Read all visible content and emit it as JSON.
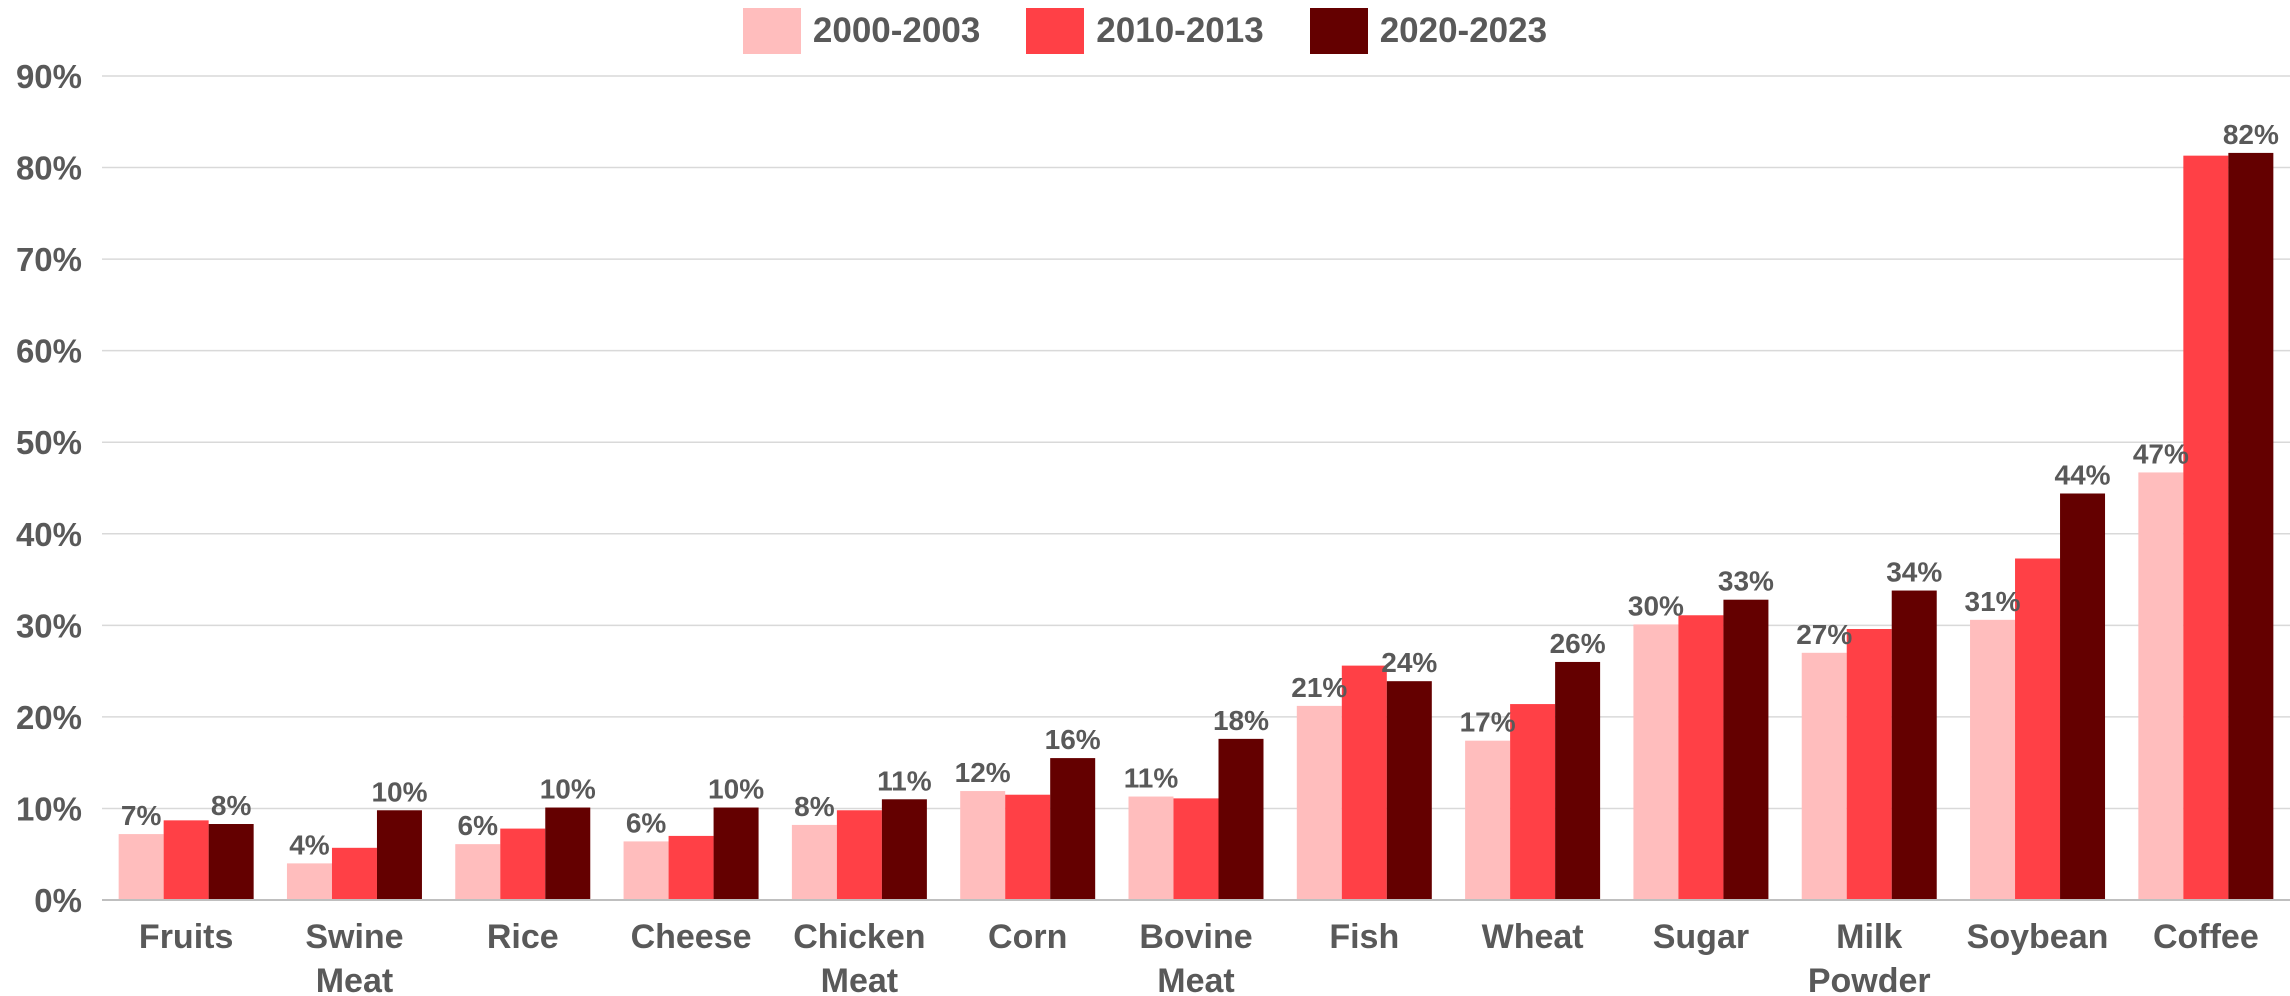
{
  "chart_data": {
    "type": "bar",
    "categories": [
      [
        "Fruits"
      ],
      [
        "Swine",
        "Meat"
      ],
      [
        "Rice"
      ],
      [
        "Cheese"
      ],
      [
        "Chicken",
        "Meat"
      ],
      [
        "Corn"
      ],
      [
        "Bovine",
        "Meat"
      ],
      [
        "Fish"
      ],
      [
        "Wheat"
      ],
      [
        "Sugar"
      ],
      [
        "Milk",
        "Powder"
      ],
      [
        "Soybean"
      ],
      [
        "Coffee"
      ]
    ],
    "category_names": [
      "Fruits",
      "Swine Meat",
      "Rice",
      "Cheese",
      "Chicken Meat",
      "Corn",
      "Bovine Meat",
      "Fish",
      "Wheat",
      "Sugar",
      "Milk Powder",
      "Soybean",
      "Coffee"
    ],
    "series": [
      {
        "name": "2000-2003",
        "color": "#FFBDBD",
        "values": [
          7.2,
          4.0,
          6.1,
          6.4,
          8.2,
          11.9,
          11.3,
          21.2,
          17.4,
          30.1,
          27.0,
          30.6,
          46.7
        ],
        "labels": [
          "7%",
          "4%",
          "6%",
          "6%",
          "8%",
          "12%",
          "11%",
          "21%",
          "17%",
          "30%",
          "27%",
          "31%",
          "47%"
        ]
      },
      {
        "name": "2010-2013",
        "color": "#FF4046",
        "values": [
          8.7,
          5.7,
          7.8,
          7.0,
          9.8,
          11.5,
          11.1,
          25.6,
          21.4,
          31.1,
          29.6,
          37.3,
          81.3
        ],
        "labels": [
          "",
          "",
          "",
          "",
          "",
          "",
          "",
          "",
          "",
          "",
          "",
          "",
          ""
        ]
      },
      {
        "name": "2020-2023",
        "color": "#640000",
        "values": [
          8.3,
          9.8,
          10.1,
          10.1,
          11.0,
          15.5,
          17.6,
          23.9,
          26.0,
          32.8,
          33.8,
          44.4,
          81.6
        ],
        "labels": [
          "8%",
          "10%",
          "10%",
          "10%",
          "11%",
          "16%",
          "18%",
          "24%",
          "26%",
          "33%",
          "34%",
          "44%",
          "82%"
        ]
      }
    ],
    "ylim": [
      0,
      90
    ],
    "yticks": [
      0,
      10,
      20,
      30,
      40,
      50,
      60,
      70,
      80,
      90
    ],
    "ytick_labels": [
      "0%",
      "10%",
      "20%",
      "30%",
      "40%",
      "50%",
      "60%",
      "70%",
      "80%",
      "90%"
    ],
    "grid": true,
    "legend_position": "top-center"
  }
}
